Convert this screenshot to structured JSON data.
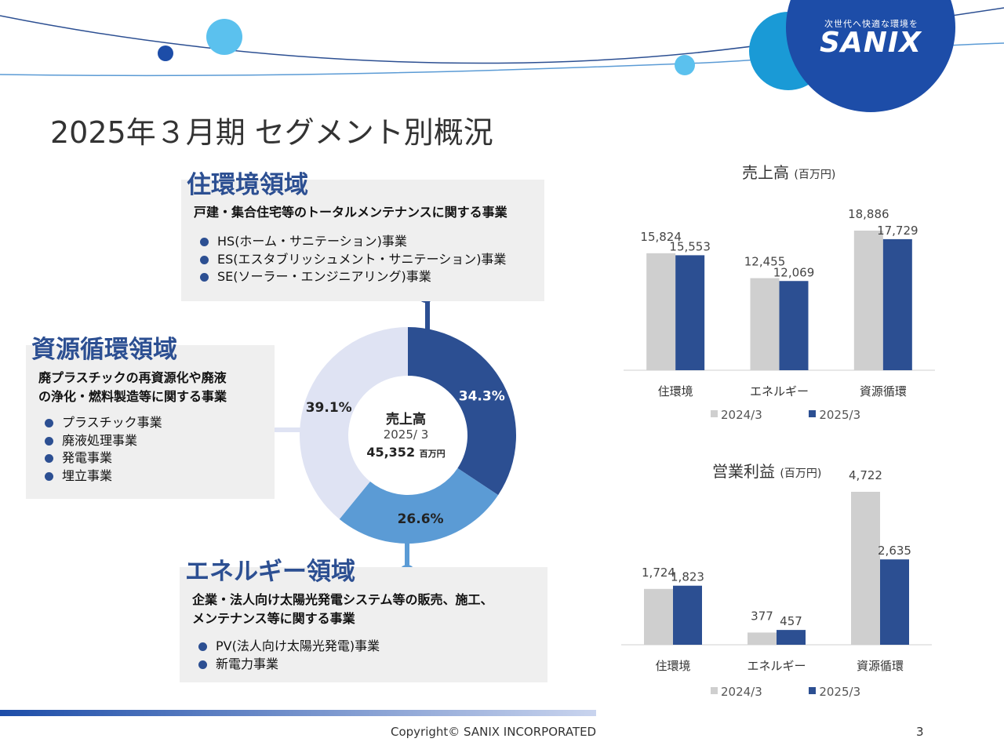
{
  "logo": {
    "tagline": "次世代へ快適な環境を",
    "name": "SANIX"
  },
  "page_title": "2025年３月期 セグメント別概況",
  "segments": {
    "housing": {
      "title": "住環境領域",
      "desc": "戸建・集合住宅等のトータルメンテナンスに関する事業",
      "items": [
        "HS(ホーム・サニテーション)事業",
        "ES(エスタブリッシュメント・サニテーション)事業",
        "SE(ソーラー・エンジニアリング)事業"
      ]
    },
    "resource": {
      "title": "資源循環領域",
      "desc_lines": [
        "廃プラスチックの再資源化や廃液",
        "の浄化・燃料製造等に関する事業"
      ],
      "items": [
        "プラスチック事業",
        "廃液処理事業",
        "発電事業",
        "埋立事業"
      ]
    },
    "energy": {
      "title": "エネルギー領域",
      "desc_lines": [
        "企業・法人向け太陽光発電システム等の販売、施工、",
        "メンテナンス等に関する事業"
      ],
      "items": [
        "PV(法人向け太陽光発電)事業",
        "新電力事業"
      ]
    }
  },
  "donut": {
    "center_title": "売上高",
    "center_period": "2025/ 3",
    "center_value": "45,352",
    "center_unit": "百万円",
    "slices": [
      {
        "label": "34.3%",
        "value": 34.3,
        "color": "#2c4f92"
      },
      {
        "label": "26.6%",
        "value": 26.6,
        "color": "#5b9bd5"
      },
      {
        "label": "39.1%",
        "value": 39.1,
        "color": "#dfe3f3"
      }
    ]
  },
  "chart_data": [
    {
      "type": "bar",
      "title": "売上高",
      "unit": "(百万円)",
      "categories": [
        "住環境",
        "エネルギー",
        "資源循環"
      ],
      "series": [
        {
          "name": "2024/3",
          "values": [
            15824,
            12455,
            18886
          ],
          "labels": [
            "15,824",
            "12,455",
            "18,886"
          ],
          "color": "#cfcfcf"
        },
        {
          "name": "2025/3",
          "values": [
            15553,
            12069,
            17729
          ],
          "labels": [
            "15,553",
            "12,069",
            "17,729"
          ],
          "color": "#2c4f92"
        }
      ],
      "legend": "bottom"
    },
    {
      "type": "bar",
      "title": "営業利益",
      "unit": "(百万円)",
      "categories": [
        "住環境",
        "エネルギー",
        "資源循環"
      ],
      "series": [
        {
          "name": "2024/3",
          "values": [
            1724,
            377,
            4722
          ],
          "labels": [
            "1,724",
            "377",
            "4,722"
          ],
          "color": "#cfcfcf"
        },
        {
          "name": "2025/3",
          "values": [
            1823,
            457,
            2635
          ],
          "labels": [
            "1,823",
            "457",
            "2,635"
          ],
          "color": "#2c4f92"
        }
      ],
      "legend": "bottom"
    }
  ],
  "footer": {
    "copyright": "Copyright©  SANIX INCORPORATED",
    "page": "3"
  }
}
